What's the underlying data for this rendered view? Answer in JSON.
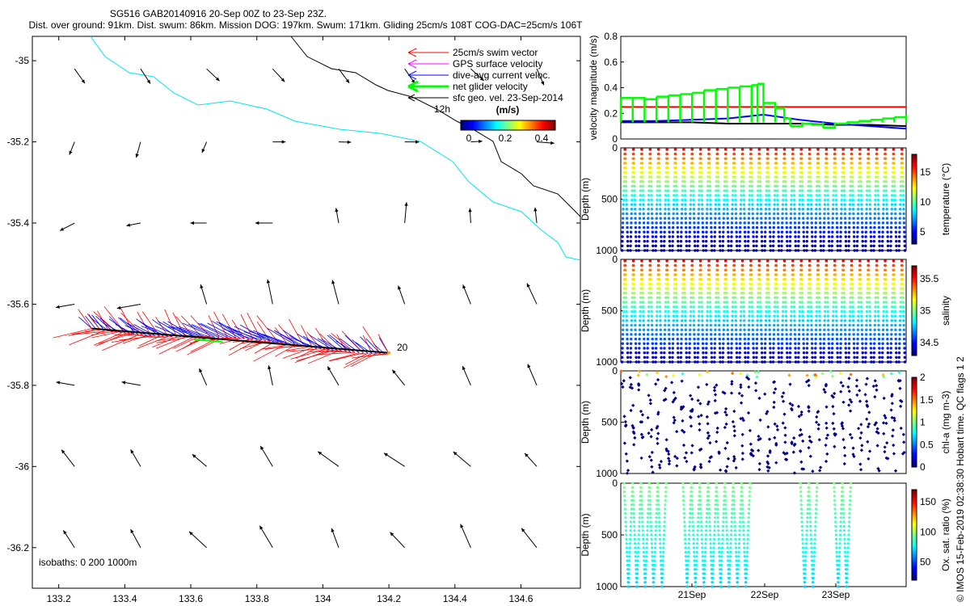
{
  "header": {
    "title": "SG516 GAB20140916 20-Sep 00Z to 23-Sep 23Z.",
    "subtitle": "Dist. over ground: 91km. Dist. swum: 86km. Mission DOG: 197km. Swum: 171km. Gliding 25cm/s 108T COG-DAC=25cm/s 106T"
  },
  "credit": "© IMOS 15-Feb-2019 02:38:30 Hobart time. QC flags 1  2",
  "colors": {
    "swim": "#ff0000",
    "gps": "#ff00ff",
    "dac": "#0000ff",
    "net": "#00ff00",
    "geo": "#000000",
    "coast": "#00e5ee"
  },
  "chart_data": [
    {
      "type": "scatter",
      "name": "map",
      "x_ticks": [
        "133.2",
        "133.4",
        "133.6",
        "133.8",
        "134",
        "134.2",
        "134.4",
        "134.6"
      ],
      "y_ticks": [
        "-35",
        "-35.2",
        "-35.4",
        "-35.6",
        "-35.8",
        "-36",
        "-36.2"
      ],
      "xlim": [
        133.12,
        134.78
      ],
      "ylim": [
        -36.3,
        -34.94
      ],
      "legend": {
        "position": "top-right",
        "entries": [
          {
            "label": "25cm/s swim vector",
            "color": "#ff0000"
          },
          {
            "label": "GPS surface velocity",
            "color": "#ff00ff"
          },
          {
            "label": "dive-avg current veloc.",
            "color": "#0000ff"
          },
          {
            "label": "net glider velocity",
            "color": "#00ff00"
          },
          {
            "label": "sfc geo. vel. 23-Sep-2014",
            "color": "#000000"
          }
        ],
        "extra_label": "12h"
      },
      "colorbar": {
        "label": "(m/s)",
        "ticks": [
          "0",
          "0.2",
          "0.4"
        ]
      },
      "isobaths_label": "isobaths: 0   200  1000m",
      "end_label": "20",
      "track_start": [
        133.3,
        -35.66
      ],
      "track_end": [
        134.2,
        -35.72
      ]
    },
    {
      "type": "line",
      "name": "velocity",
      "ylabel": "velocity magnitude (m/s)",
      "ylim": [
        0,
        0.8
      ],
      "y_ticks": [
        "0",
        "0.2",
        "0.4",
        "0.6",
        "0.8"
      ],
      "swim_speed": 0.25,
      "net_glider": [
        [
          0,
          0.32
        ],
        [
          4,
          0.32
        ],
        [
          8,
          0.31
        ],
        [
          12,
          0.33
        ],
        [
          16,
          0.34
        ],
        [
          20,
          0.35
        ],
        [
          24,
          0.36
        ],
        [
          28,
          0.38
        ],
        [
          32,
          0.39
        ],
        [
          36,
          0.4
        ],
        [
          40,
          0.41
        ],
        [
          44,
          0.42
        ],
        [
          46,
          0.43
        ],
        [
          48,
          0.28
        ],
        [
          52,
          0.24
        ],
        [
          55,
          0.16
        ],
        [
          57,
          0.1
        ],
        [
          61,
          0.12
        ],
        [
          64,
          0.11
        ],
        [
          68,
          0.09
        ],
        [
          72,
          0.12
        ],
        [
          76,
          0.13
        ],
        [
          80,
          0.14
        ],
        [
          84,
          0.15
        ],
        [
          88,
          0.16
        ],
        [
          92,
          0.17
        ],
        [
          96,
          0.19
        ]
      ],
      "dac": [
        [
          0,
          0.14
        ],
        [
          12,
          0.14
        ],
        [
          24,
          0.15
        ],
        [
          36,
          0.16
        ],
        [
          48,
          0.19
        ],
        [
          60,
          0.15
        ],
        [
          72,
          0.12
        ],
        [
          84,
          0.1
        ],
        [
          96,
          0.08
        ]
      ],
      "geo": [
        [
          0,
          0.13
        ],
        [
          12,
          0.13
        ],
        [
          24,
          0.13
        ],
        [
          36,
          0.12
        ],
        [
          48,
          0.12
        ],
        [
          60,
          0.12
        ],
        [
          72,
          0.11
        ],
        [
          84,
          0.11
        ],
        [
          96,
          0.1
        ]
      ]
    },
    {
      "type": "scatter",
      "name": "temperature",
      "ylabel": "Depth (m)",
      "clabel": "temperature (°C)",
      "ylim": [
        0,
        1000
      ],
      "y_ticks": [
        "0",
        "500",
        "1000"
      ],
      "c_ticks": [
        "5",
        "10",
        "15"
      ],
      "clim": [
        3,
        18
      ],
      "surface_value": 17,
      "bottom_value": 3.5,
      "dives": 34
    },
    {
      "type": "scatter",
      "name": "salinity",
      "ylabel": "Depth (m)",
      "clabel": "salinity",
      "ylim": [
        0,
        1000
      ],
      "y_ticks": [
        "0",
        "500",
        "1000"
      ],
      "c_ticks": [
        "34.5",
        "35",
        "35.5"
      ],
      "clim": [
        34.3,
        35.7
      ],
      "surface_value": 35.6,
      "bottom_value": 34.4,
      "dives": 34
    },
    {
      "type": "scatter",
      "name": "chl",
      "ylabel": "Depth (m)",
      "clabel": "chl-a (mg m-3)",
      "ylim": [
        0,
        1000
      ],
      "y_ticks": [
        "0",
        "500",
        "1000"
      ],
      "c_ticks": [
        "0",
        "0.5",
        "1",
        "1.5",
        "2"
      ],
      "clim": [
        0,
        2
      ],
      "surface_value": 1.6,
      "bottom_value": 0.02,
      "dives": 34
    },
    {
      "type": "scatter",
      "name": "oxygen",
      "ylabel": "Depth (m)",
      "clabel": "Ox. sat. ratio (%)",
      "ylim": [
        0,
        1000
      ],
      "y_ticks": [
        "0",
        "500",
        "1000"
      ],
      "c_ticks": [
        "50",
        "100",
        "150"
      ],
      "clim": [
        20,
        170
      ],
      "surface_value": 95,
      "bottom_value": 70,
      "dives_shown": [
        1,
        2,
        3,
        4,
        5,
        8,
        9,
        10,
        11,
        12,
        13,
        14,
        15,
        22,
        23,
        26,
        27
      ],
      "x_ticks": [
        "21Sep",
        "22Sep",
        "23Sep"
      ]
    }
  ]
}
